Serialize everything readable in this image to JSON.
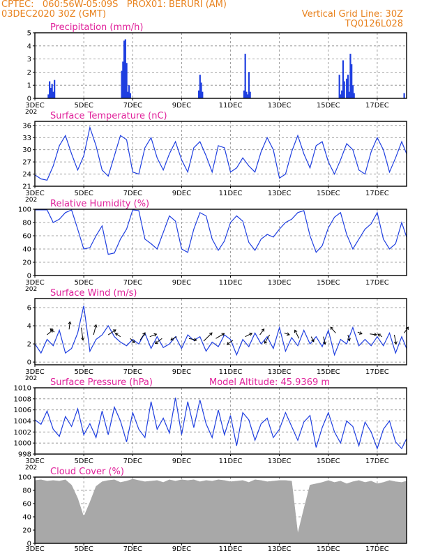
{
  "header": {
    "line1_left": "CPTEC:   060:56W-05:09S   PROX01: BERURI (AM)",
    "line2_left": "03DEC2020 30Z (GMT)",
    "line2_right": "Vertical Grid Line: 30Z",
    "line3_right": "TQ0126L028"
  },
  "colors": {
    "header": "#e8821e",
    "title": "#e0209a",
    "series": "#1f3fe0",
    "bars": "#1f3fe0",
    "cloud": "#a8a8a8",
    "grid": "#888888"
  },
  "x_axis": {
    "ticks": [
      "3DEC",
      "5DEC",
      "7DEC",
      "9DEC",
      "11DEC",
      "13DEC",
      "15DEC",
      "17DEC"
    ],
    "tick_days": [
      0,
      2,
      4,
      6,
      8,
      10,
      12,
      14
    ],
    "range_days": [
      0,
      15.2
    ],
    "year_stub": "202"
  },
  "chart_data": [
    {
      "type": "bar",
      "title": "Precipitation (mm/h)",
      "ylim": [
        0,
        5
      ],
      "yticks": [
        "0",
        "1",
        "2",
        "3",
        "4",
        "5"
      ],
      "ytick_values": [
        0,
        1,
        2,
        3,
        4,
        5
      ],
      "x_days": [
        0.55,
        0.6,
        0.65,
        0.7,
        0.75,
        0.8,
        3.55,
        3.6,
        3.65,
        3.7,
        3.75,
        3.8,
        3.85,
        3.9,
        6.7,
        6.75,
        6.8,
        6.85,
        8.55,
        8.6,
        8.65,
        8.7,
        8.75,
        8.8,
        12.45,
        12.5,
        12.55,
        12.6,
        12.65,
        12.75,
        12.8,
        12.85,
        12.9,
        12.95,
        13.0,
        13.05,
        15.1
      ],
      "values": [
        0.3,
        1.3,
        0.8,
        1.1,
        0.5,
        1.4,
        2.1,
        2.8,
        4.4,
        4.5,
        2.7,
        0.5,
        1.0,
        0.4,
        0.6,
        1.8,
        1.2,
        0.5,
        0.6,
        3.4,
        0.5,
        0.3,
        2.0,
        0.5,
        1.8,
        0.3,
        0.6,
        2.9,
        1.3,
        1.5,
        1.8,
        0.5,
        3.4,
        2.6,
        1.0,
        0.4,
        0.4
      ]
    },
    {
      "type": "line",
      "title": "Surface Temperature (nC)",
      "ylim": [
        21,
        37
      ],
      "yticks": [
        "21",
        "24",
        "27",
        "30",
        "33",
        "36"
      ],
      "ytick_values": [
        21,
        24,
        27,
        30,
        33,
        36
      ],
      "x_days": [
        0,
        0.25,
        0.5,
        0.75,
        1.0,
        1.25,
        1.5,
        1.75,
        2.0,
        2.25,
        2.5,
        2.75,
        3.0,
        3.25,
        3.5,
        3.75,
        4.0,
        4.25,
        4.5,
        4.75,
        5.0,
        5.25,
        5.5,
        5.75,
        6.0,
        6.25,
        6.5,
        6.75,
        7.0,
        7.25,
        7.5,
        7.75,
        8.0,
        8.25,
        8.5,
        8.75,
        9.0,
        9.25,
        9.5,
        9.75,
        10.0,
        10.25,
        10.5,
        10.75,
        11.0,
        11.25,
        11.5,
        11.75,
        12.0,
        12.25,
        12.5,
        12.75,
        13.0,
        13.25,
        13.5,
        13.75,
        14.0,
        14.25,
        14.5,
        14.75,
        15.0,
        15.2
      ],
      "values": [
        23.8,
        22.8,
        22.5,
        26.0,
        31.0,
        33.5,
        29.0,
        25.0,
        28.5,
        35.5,
        31.0,
        25.0,
        23.5,
        28.5,
        33.5,
        32.5,
        24.5,
        24.0,
        30.5,
        33.0,
        28.0,
        25.0,
        29.0,
        32.0,
        27.5,
        24.5,
        30.5,
        32.0,
        28.5,
        24.5,
        31.0,
        30.5,
        24.5,
        25.5,
        28.0,
        26.0,
        24.5,
        29.5,
        33.0,
        30.0,
        23.0,
        24.0,
        29.5,
        33.5,
        29.0,
        25.5,
        31.0,
        32.0,
        27.0,
        24.0,
        27.5,
        31.5,
        30.0,
        25.0,
        24.0,
        29.5,
        33.0,
        30.0,
        24.5,
        28.0,
        32.0,
        29.0
      ]
    },
    {
      "type": "line",
      "title": "Relative Humidity (%)",
      "ylim": [
        0,
        100
      ],
      "yticks": [
        "0",
        "20",
        "40",
        "60",
        "80",
        "100"
      ],
      "ytick_values": [
        0,
        20,
        40,
        60,
        80,
        100
      ],
      "x_days": [
        0,
        0.25,
        0.5,
        0.75,
        1.0,
        1.25,
        1.5,
        1.75,
        2.0,
        2.25,
        2.5,
        2.75,
        3.0,
        3.25,
        3.5,
        3.75,
        4.0,
        4.25,
        4.5,
        4.75,
        5.0,
        5.25,
        5.5,
        5.75,
        6.0,
        6.25,
        6.5,
        6.75,
        7.0,
        7.25,
        7.5,
        7.75,
        8.0,
        8.25,
        8.5,
        8.75,
        9.0,
        9.25,
        9.5,
        9.75,
        10.0,
        10.25,
        10.5,
        10.75,
        11.0,
        11.25,
        11.5,
        11.75,
        12.0,
        12.25,
        12.5,
        12.75,
        13.0,
        13.25,
        13.5,
        13.75,
        14.0,
        14.25,
        14.5,
        14.75,
        15.0,
        15.2
      ],
      "values": [
        99,
        99,
        99,
        80,
        85,
        95,
        99,
        70,
        40,
        42,
        60,
        75,
        32,
        34,
        55,
        70,
        99,
        98,
        55,
        48,
        40,
        65,
        90,
        82,
        40,
        35,
        70,
        95,
        90,
        55,
        38,
        52,
        80,
        90,
        82,
        50,
        38,
        55,
        62,
        58,
        70,
        80,
        85,
        95,
        98,
        60,
        35,
        45,
        72,
        88,
        95,
        62,
        40,
        55,
        70,
        78,
        95,
        55,
        40,
        48,
        80,
        58
      ]
    },
    {
      "type": "line",
      "title": "Surface Wind (m/s)",
      "ylim": [
        -0.3,
        7.0
      ],
      "yticks": [
        "0",
        "2",
        "4",
        "6"
      ],
      "ytick_values": [
        0,
        2,
        4,
        6
      ],
      "x_days": [
        0,
        0.25,
        0.5,
        0.75,
        1.0,
        1.25,
        1.5,
        1.75,
        2.0,
        2.25,
        2.5,
        2.75,
        3.0,
        3.25,
        3.5,
        3.75,
        4.0,
        4.25,
        4.5,
        4.75,
        5.0,
        5.25,
        5.5,
        5.75,
        6.0,
        6.25,
        6.5,
        6.75,
        7.0,
        7.25,
        7.5,
        7.75,
        8.0,
        8.25,
        8.5,
        8.75,
        9.0,
        9.25,
        9.5,
        9.75,
        10.0,
        10.25,
        10.5,
        10.75,
        11.0,
        11.25,
        11.5,
        11.75,
        12.0,
        12.25,
        12.5,
        12.75,
        13.0,
        13.25,
        13.5,
        13.75,
        14.0,
        14.25,
        14.5,
        14.75,
        15.0,
        15.2
      ],
      "values": [
        2.0,
        1.0,
        2.5,
        1.8,
        3.5,
        1.0,
        1.5,
        3.2,
        6.2,
        1.2,
        2.5,
        3.0,
        4.0,
        2.8,
        2.2,
        1.8,
        2.5,
        2.0,
        3.2,
        1.5,
        2.8,
        1.6,
        2.0,
        2.8,
        1.5,
        3.0,
        2.4,
        2.8,
        1.2,
        2.2,
        1.7,
        3.0,
        2.5,
        0.8,
        2.5,
        1.7,
        3.2,
        2.0,
        2.8,
        1.5,
        3.8,
        1.2,
        2.7,
        1.8,
        3.5,
        2.0,
        2.8,
        1.7,
        3.5,
        0.8,
        2.5,
        2.0,
        3.8,
        1.8,
        2.5,
        1.8,
        2.8,
        1.8,
        3.2,
        1.0,
        2.8,
        1.5
      ],
      "vectors": [
        {
          "x": 0.5,
          "y": 3.0,
          "u": 0.7,
          "v": 0.6
        },
        {
          "x": 0.8,
          "y": 3.3,
          "u": -0.5,
          "v": 0.4
        },
        {
          "x": 1.4,
          "y": 3.6,
          "u": 0.1,
          "v": 0.9
        },
        {
          "x": 1.9,
          "y": 3.8,
          "u": 0.2,
          "v": -1.5
        },
        {
          "x": 2.4,
          "y": 3.0,
          "u": 0.3,
          "v": 1.2
        },
        {
          "x": 3.0,
          "y": 3.0,
          "u": 0.9,
          "v": 0.6
        },
        {
          "x": 3.5,
          "y": 2.8,
          "u": -0.6,
          "v": 0.4
        },
        {
          "x": 3.9,
          "y": 2.6,
          "u": 0.5,
          "v": -0.5
        },
        {
          "x": 4.3,
          "y": 2.4,
          "u": 0.6,
          "v": 0.9
        },
        {
          "x": 4.7,
          "y": 2.8,
          "u": 0.8,
          "v": 0.3
        },
        {
          "x": 5.2,
          "y": 2.6,
          "u": -0.8,
          "v": -0.6
        },
        {
          "x": 5.8,
          "y": 2.8,
          "u": -0.7,
          "v": -0.4
        },
        {
          "x": 6.3,
          "y": 2.6,
          "u": 0.9,
          "v": -0.2
        },
        {
          "x": 6.9,
          "y": 2.3,
          "u": 1.0,
          "v": 1.0
        },
        {
          "x": 7.4,
          "y": 2.6,
          "u": 1.0,
          "v": 0.6
        },
        {
          "x": 8.1,
          "y": 2.4,
          "u": -0.7,
          "v": -0.5
        },
        {
          "x": 8.6,
          "y": 2.8,
          "u": 0.8,
          "v": 0.4
        },
        {
          "x": 9.2,
          "y": 3.0,
          "u": 0.5,
          "v": 0.7
        },
        {
          "x": 9.6,
          "y": 3.0,
          "u": -0.6,
          "v": -1.0
        },
        {
          "x": 10.2,
          "y": 3.2,
          "u": 0.6,
          "v": -0.2
        },
        {
          "x": 10.8,
          "y": 2.6,
          "u": -0.5,
          "v": 1.0
        },
        {
          "x": 11.3,
          "y": 2.8,
          "u": 0.3,
          "v": -0.6
        },
        {
          "x": 11.8,
          "y": 2.8,
          "u": 0.2,
          "v": -0.9
        },
        {
          "x": 12.3,
          "y": 3.2,
          "u": -0.6,
          "v": 0.7
        },
        {
          "x": 12.8,
          "y": 3.0,
          "u": 0.2,
          "v": -0.7
        },
        {
          "x": 13.2,
          "y": 3.3,
          "u": 0.5,
          "v": -0.2
        },
        {
          "x": 13.7,
          "y": 3.1,
          "u": 0.8,
          "v": -0.1
        },
        {
          "x": 14.2,
          "y": 2.8,
          "u": -0.5,
          "v": 0.3
        },
        {
          "x": 14.7,
          "y": 3.0,
          "u": 0.2,
          "v": -1.1
        },
        {
          "x": 15.1,
          "y": 3.2,
          "u": 0.5,
          "v": 0.7
        }
      ]
    },
    {
      "type": "line",
      "title": "Surface Pressure (hPa)",
      "annotation": "Model Altitude: 45.9369 m",
      "ylim": [
        998,
        1010
      ],
      "yticks": [
        "998",
        "1000",
        "1002",
        "1004",
        "1006",
        "1008",
        "1010"
      ],
      "ytick_values": [
        998,
        1000,
        1002,
        1004,
        1006,
        1008,
        1010
      ],
      "x_days": [
        0,
        0.25,
        0.5,
        0.75,
        1.0,
        1.25,
        1.5,
        1.75,
        2.0,
        2.25,
        2.5,
        2.75,
        3.0,
        3.25,
        3.5,
        3.75,
        4.0,
        4.25,
        4.5,
        4.75,
        5.0,
        5.25,
        5.5,
        5.75,
        6.0,
        6.25,
        6.5,
        6.75,
        7.0,
        7.25,
        7.5,
        7.75,
        8.0,
        8.25,
        8.5,
        8.75,
        9.0,
        9.25,
        9.5,
        9.75,
        10.0,
        10.25,
        10.5,
        10.75,
        11.0,
        11.25,
        11.5,
        11.75,
        12.0,
        12.25,
        12.5,
        12.75,
        13.0,
        13.25,
        13.5,
        13.75,
        14.0,
        14.25,
        14.5,
        14.75,
        15.0,
        15.2
      ],
      "values": [
        1004.2,
        1003.4,
        1005.8,
        1002.5,
        1001.2,
        1004.8,
        1003.0,
        1006.2,
        1001.5,
        1003.5,
        1001.0,
        1005.8,
        1001.5,
        1006.5,
        1004.0,
        1000.2,
        1005.5,
        1002.5,
        1001.0,
        1007.5,
        1002.5,
        1004.5,
        1001.8,
        1008.2,
        1001.5,
        1007.5,
        1002.8,
        1007.8,
        1003.5,
        1001.0,
        1006.0,
        1001.5,
        1005.0,
        999.5,
        1005.5,
        1004.2,
        1000.5,
        1003.5,
        1004.5,
        1001.0,
        1002.5,
        1005.5,
        1003.0,
        1000.5,
        1003.8,
        1005.0,
        999.2,
        1002.8,
        1005.5,
        1002.0,
        1000.0,
        1004.0,
        1003.0,
        999.5,
        1003.8,
        1002.0,
        999.0,
        1002.5,
        1004.0,
        1000.2,
        999.0,
        1000.8
      ]
    },
    {
      "type": "area",
      "title": "Cloud Cover (%)",
      "ylim": [
        0,
        100
      ],
      "yticks": [
        "0",
        "20",
        "40",
        "60",
        "80",
        "100"
      ],
      "ytick_values": [
        0,
        20,
        40,
        60,
        80,
        100
      ],
      "x_days": [
        0,
        0.25,
        0.5,
        0.75,
        1.0,
        1.25,
        1.5,
        1.75,
        2.0,
        2.25,
        2.5,
        2.75,
        3.0,
        3.25,
        3.5,
        3.75,
        4.0,
        4.25,
        4.5,
        4.75,
        5.0,
        5.25,
        5.5,
        5.75,
        6.0,
        6.25,
        6.5,
        6.75,
        7.0,
        7.25,
        7.5,
        7.75,
        8.0,
        8.25,
        8.5,
        8.75,
        9.0,
        9.25,
        9.5,
        9.75,
        10.0,
        10.25,
        10.5,
        10.75,
        11.0,
        11.25,
        11.5,
        11.75,
        12.0,
        12.25,
        12.5,
        12.75,
        13.0,
        13.25,
        13.5,
        13.75,
        14.0,
        14.25,
        14.5,
        14.75,
        15.0,
        15.2
      ],
      "values": [
        95,
        96,
        94,
        95,
        94,
        96,
        88,
        68,
        40,
        62,
        86,
        93,
        95,
        96,
        92,
        94,
        97,
        95,
        93,
        94,
        95,
        92,
        96,
        94,
        96,
        95,
        96,
        93,
        95,
        94,
        96,
        95,
        93,
        94,
        95,
        92,
        96,
        95,
        93,
        94,
        95,
        95,
        94,
        15,
        52,
        88,
        90,
        92,
        95,
        92,
        94,
        90,
        93,
        95,
        92,
        94,
        90,
        92,
        95,
        93,
        92,
        94
      ]
    }
  ]
}
